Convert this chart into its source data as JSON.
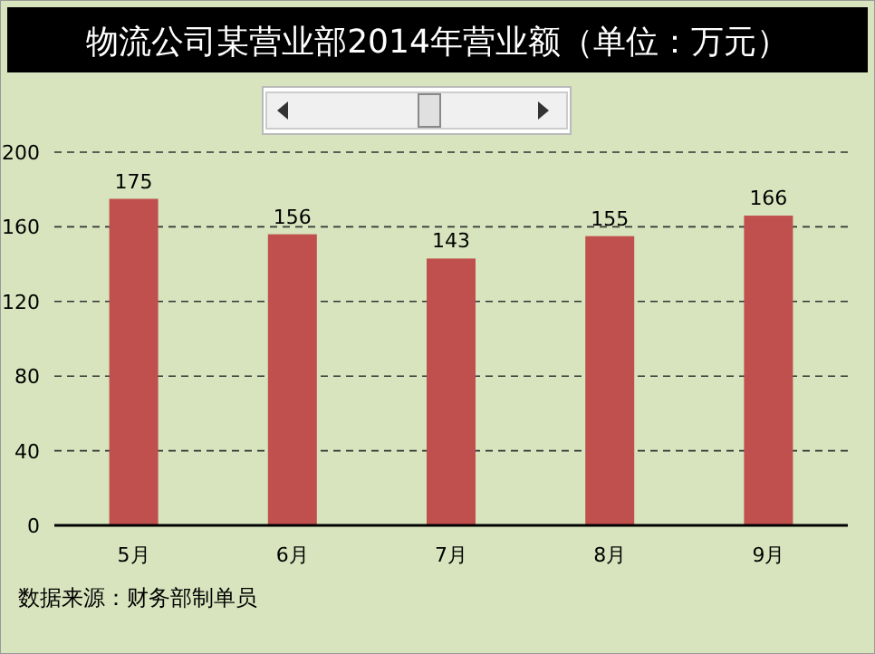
{
  "chart_data": {
    "type": "bar",
    "title": "物流公司某营业部2014年营业额（单位：万元）",
    "categories": [
      "5月",
      "6月",
      "7月",
      "8月",
      "9月"
    ],
    "values": [
      175,
      156,
      143,
      155,
      166
    ],
    "color": "#c0504d",
    "ylim": [
      0,
      200
    ],
    "yticks": [
      0,
      40,
      80,
      120,
      160,
      200
    ],
    "grid": "y",
    "data_labels": true,
    "annotations": [
      "数据来源：财务部制单员"
    ]
  }
}
